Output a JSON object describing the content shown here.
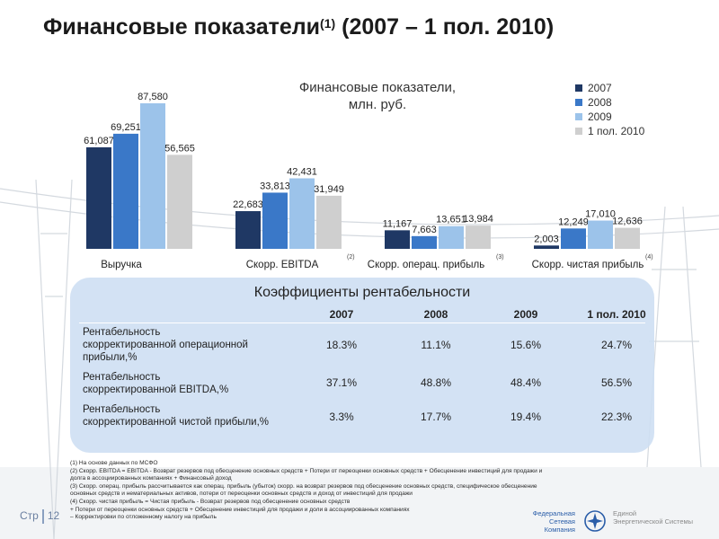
{
  "page": {
    "title": "Финансовые показатели",
    "title_sup": "(1)",
    "title_period": " (2007 – 1 пол. 2010)",
    "page_label": "Стр",
    "page_number": "12"
  },
  "chart_data": {
    "type": "bar",
    "title": "Финансовые показатели, млн. руб.",
    "categories": [
      "Выручка",
      "Скорр. EBITDA",
      "Скорр. операц. прибыль",
      "Скорр. чистая прибыль"
    ],
    "category_notes": [
      "",
      "(2)",
      "(3)",
      "(4)"
    ],
    "series": [
      {
        "name": "2007",
        "color": "#1f3864",
        "values": [
          61087,
          22683,
          11167,
          2003
        ],
        "labels": [
          "61,087",
          "22,683",
          "11,167",
          "2,003"
        ]
      },
      {
        "name": "2008",
        "color": "#3a78c8",
        "values": [
          69251,
          33813,
          7663,
          12249
        ],
        "labels": [
          "69,251",
          "33,813",
          "7,663",
          "12,249"
        ]
      },
      {
        "name": "2009",
        "color": "#9cc3ea",
        "values": [
          87580,
          42431,
          13651,
          17010
        ],
        "labels": [
          "87,580",
          "42,431",
          "13,651",
          "17,010"
        ]
      },
      {
        "name": "1 пол. 2010",
        "color": "#cfcfcf",
        "values": [
          56565,
          31949,
          13984,
          12636
        ],
        "labels": [
          "56,565",
          "31,949",
          "13,984",
          "12,636"
        ]
      }
    ],
    "legend_position": "top-right",
    "grid": false
  },
  "table": {
    "title": "Коэффициенты рентабельности",
    "years": [
      "2007",
      "2008",
      "2009",
      "1 пол. 2010"
    ],
    "rows": [
      {
        "label_lines": [
          "Рентабельность",
          "скорректированной операционной",
          "прибыли,%"
        ],
        "values": [
          "18.3%",
          "11.1%",
          "15.6%",
          "24.7%"
        ]
      },
      {
        "label_lines": [
          "Рентабельность",
          "скорректированной EBITDA,%"
        ],
        "values": [
          "37.1%",
          "48.8%",
          "48.4%",
          "56.5%"
        ]
      },
      {
        "label_lines": [
          "Рентабельность",
          "скорректированной чистой прибыли,%"
        ],
        "values": [
          "3.3%",
          "17.7%",
          "19.4%",
          "22.3%"
        ]
      }
    ]
  },
  "footnotes": [
    "(1) На основе данных по МСФО",
    "(2) Скорр. EBITDA = EBITDA - Возврат резервов под обесценение основных средств + Потери от переоценки основных средств + Обесценение инвестиций для продажи и",
    "долга в ассоциированных компаниях + Финансовый доход",
    "(3) Скорр. операц. прибыль рассчитывается как операц. прибыль (убыток) скорр. на возврат резервов под обесценение основных средств, специфическое обесценение",
    "основных средств и нематериальных активов, потери от переоценки основных средств и доход от инвестиций для продажи",
    "(4) Скорр. чистая прибыль = Чистая прибыль - Возврат резервов под обесценение основных средств",
    "+ Потери от переоценки основных средств + Обесценение инвестиций для продажи и доли в ассоциированных компаниях",
    "– Корректировки по отложенному налогу на прибыль"
  ],
  "logos": {
    "fsk_line1": "Федеральная",
    "fsk_line2": "Сетевая Компания",
    "ees_line1": "Единой",
    "ees_line2": "Энергетической Системы"
  }
}
